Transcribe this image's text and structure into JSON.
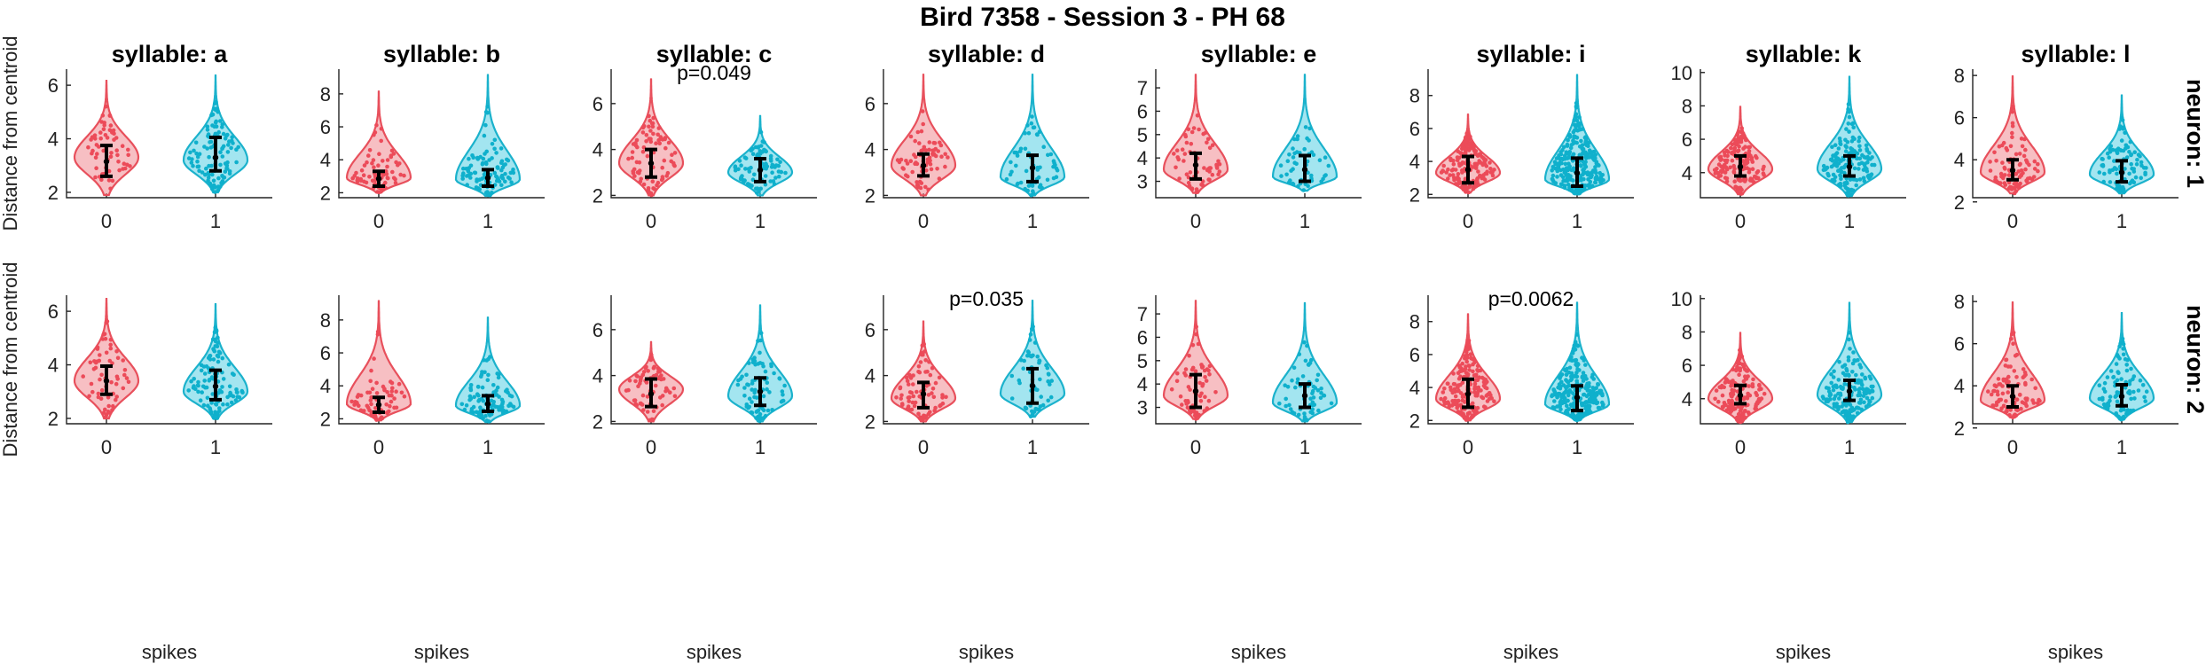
{
  "chart_data": {
    "type": "violin",
    "title": "Bird 7358 - Session 3 - PH 68",
    "xlabel": "spikes",
    "ylabel": "Distance from centroid",
    "x_categories": [
      "0",
      "1"
    ],
    "colors": {
      "spikes_0": "#e8505c",
      "spikes_1": "#1bb2cc"
    },
    "rows": [
      "neuron: 1",
      "neuron: 2"
    ],
    "columns": [
      "syllable: a",
      "syllable: b",
      "syllable: c",
      "syllable: d",
      "syllable: e",
      "syllable: i",
      "syllable: k",
      "syllable: l"
    ],
    "panels": [
      {
        "row": 0,
        "col": 0,
        "ylim": [
          1.8,
          6.6
        ],
        "yticks": [
          2,
          4,
          6
        ],
        "pvalue": "",
        "groups": [
          {
            "x": "0",
            "min": 1.9,
            "max": 6.2,
            "mode": 3.3,
            "mean": 3.15,
            "err_low": 2.6,
            "err_high": 3.75,
            "n": 60
          },
          {
            "x": "1",
            "min": 2.0,
            "max": 6.4,
            "mode": 3.2,
            "mean": 3.3,
            "err_low": 2.8,
            "err_high": 4.05,
            "n": 110
          }
        ]
      },
      {
        "row": 0,
        "col": 1,
        "ylim": [
          1.7,
          9.5
        ],
        "yticks": [
          2,
          4,
          6,
          8
        ],
        "pvalue": "",
        "groups": [
          {
            "x": "0",
            "min": 2.0,
            "max": 8.2,
            "mode": 2.9,
            "mean": 2.85,
            "err_low": 2.4,
            "err_high": 3.3,
            "n": 70
          },
          {
            "x": "1",
            "min": 1.8,
            "max": 9.2,
            "mode": 2.8,
            "mean": 2.9,
            "err_low": 2.4,
            "err_high": 3.4,
            "n": 100
          }
        ]
      },
      {
        "row": 0,
        "col": 2,
        "ylim": [
          1.9,
          7.5
        ],
        "yticks": [
          2,
          4,
          6
        ],
        "pvalue": "p=0.049",
        "groups": [
          {
            "x": "0",
            "min": 2.0,
            "max": 7.1,
            "mode": 3.4,
            "mean": 3.4,
            "err_low": 2.8,
            "err_high": 4.0,
            "n": 80
          },
          {
            "x": "1",
            "min": 2.0,
            "max": 5.5,
            "mode": 3.0,
            "mean": 3.1,
            "err_low": 2.6,
            "err_high": 3.6,
            "n": 80
          }
        ]
      },
      {
        "row": 0,
        "col": 3,
        "ylim": [
          1.9,
          7.5
        ],
        "yticks": [
          2,
          4,
          6
        ],
        "pvalue": "",
        "groups": [
          {
            "x": "0",
            "min": 2.0,
            "max": 7.3,
            "mode": 3.3,
            "mean": 3.3,
            "err_low": 2.85,
            "err_high": 3.8,
            "n": 70
          },
          {
            "x": "1",
            "min": 2.0,
            "max": 7.3,
            "mode": 2.8,
            "mean": 3.2,
            "err_low": 2.6,
            "err_high": 3.75,
            "n": 60
          }
        ]
      },
      {
        "row": 0,
        "col": 4,
        "ylim": [
          2.3,
          7.8
        ],
        "yticks": [
          3,
          4,
          5,
          6,
          7
        ],
        "pvalue": "",
        "groups": [
          {
            "x": "0",
            "min": 2.5,
            "max": 7.6,
            "mode": 3.5,
            "mean": 3.7,
            "err_low": 3.1,
            "err_high": 4.2,
            "n": 60
          },
          {
            "x": "1",
            "min": 2.6,
            "max": 7.6,
            "mode": 3.2,
            "mean": 3.5,
            "err_low": 3.0,
            "err_high": 4.1,
            "n": 50
          }
        ]
      },
      {
        "row": 0,
        "col": 5,
        "ylim": [
          1.8,
          9.6
        ],
        "yticks": [
          2,
          4,
          6,
          8
        ],
        "pvalue": "",
        "groups": [
          {
            "x": "0",
            "min": 2.1,
            "max": 6.9,
            "mode": 3.3,
            "mean": 3.5,
            "err_low": 2.7,
            "err_high": 4.3,
            "n": 200
          },
          {
            "x": "1",
            "min": 2.0,
            "max": 9.3,
            "mode": 2.9,
            "mean": 3.3,
            "err_low": 2.5,
            "err_high": 4.2,
            "n": 260
          }
        ]
      },
      {
        "row": 0,
        "col": 6,
        "ylim": [
          2.5,
          10.2
        ],
        "yticks": [
          4,
          6,
          8,
          10
        ],
        "pvalue": "",
        "groups": [
          {
            "x": "0",
            "min": 2.7,
            "max": 8.0,
            "mode": 4.2,
            "mean": 4.35,
            "err_low": 3.8,
            "err_high": 5.0,
            "n": 150
          },
          {
            "x": "1",
            "min": 2.6,
            "max": 9.8,
            "mode": 4.2,
            "mean": 4.35,
            "err_low": 3.8,
            "err_high": 5.0,
            "n": 160
          }
        ]
      },
      {
        "row": 0,
        "col": 7,
        "ylim": [
          2.2,
          8.3
        ],
        "yticks": [
          2,
          4,
          6,
          8
        ],
        "pvalue": "",
        "groups": [
          {
            "x": "0",
            "min": 2.4,
            "max": 8.0,
            "mode": 3.4,
            "mean": 3.5,
            "err_low": 3.05,
            "err_high": 4.0,
            "n": 90
          },
          {
            "x": "1",
            "min": 2.4,
            "max": 7.1,
            "mode": 3.3,
            "mean": 3.4,
            "err_low": 2.95,
            "err_high": 3.95,
            "n": 90
          }
        ]
      },
      {
        "row": 1,
        "col": 0,
        "ylim": [
          1.8,
          6.6
        ],
        "yticks": [
          2,
          4,
          6
        ],
        "pvalue": "",
        "groups": [
          {
            "x": "0",
            "min": 2.0,
            "max": 6.5,
            "mode": 3.4,
            "mean": 3.4,
            "err_low": 2.9,
            "err_high": 3.95,
            "n": 60
          },
          {
            "x": "1",
            "min": 2.0,
            "max": 6.3,
            "mode": 3.0,
            "mean": 3.2,
            "err_low": 2.7,
            "err_high": 3.8,
            "n": 110
          }
        ]
      },
      {
        "row": 1,
        "col": 1,
        "ylim": [
          1.7,
          9.5
        ],
        "yticks": [
          2,
          4,
          6,
          8
        ],
        "pvalue": "",
        "groups": [
          {
            "x": "0",
            "min": 1.9,
            "max": 9.2,
            "mode": 2.9,
            "mean": 2.85,
            "err_low": 2.4,
            "err_high": 3.3,
            "n": 70
          },
          {
            "x": "1",
            "min": 1.8,
            "max": 8.2,
            "mode": 2.8,
            "mean": 2.9,
            "err_low": 2.45,
            "err_high": 3.4,
            "n": 100
          }
        ]
      },
      {
        "row": 1,
        "col": 2,
        "ylim": [
          1.9,
          7.5
        ],
        "yticks": [
          2,
          4,
          6
        ],
        "pvalue": "",
        "groups": [
          {
            "x": "0",
            "min": 2.0,
            "max": 5.5,
            "mode": 3.4,
            "mean": 3.2,
            "err_low": 2.65,
            "err_high": 3.85,
            "n": 70
          },
          {
            "x": "1",
            "min": 2.0,
            "max": 7.1,
            "mode": 3.1,
            "mean": 3.3,
            "err_low": 2.7,
            "err_high": 3.9,
            "n": 80
          }
        ]
      },
      {
        "row": 1,
        "col": 3,
        "ylim": [
          1.9,
          7.5
        ],
        "yticks": [
          2,
          4,
          6
        ],
        "pvalue": "p=0.035",
        "groups": [
          {
            "x": "0",
            "min": 2.0,
            "max": 6.4,
            "mode": 3.0,
            "mean": 3.2,
            "err_low": 2.6,
            "err_high": 3.7,
            "n": 80
          },
          {
            "x": "1",
            "min": 2.2,
            "max": 7.3,
            "mode": 3.2,
            "mean": 3.55,
            "err_low": 2.8,
            "err_high": 4.3,
            "n": 60
          }
        ]
      },
      {
        "row": 1,
        "col": 4,
        "ylim": [
          2.3,
          7.8
        ],
        "yticks": [
          3,
          4,
          5,
          6,
          7
        ],
        "pvalue": "",
        "groups": [
          {
            "x": "0",
            "min": 2.5,
            "max": 7.6,
            "mode": 3.5,
            "mean": 3.7,
            "err_low": 3.0,
            "err_high": 4.4,
            "n": 60
          },
          {
            "x": "1",
            "min": 2.4,
            "max": 7.5,
            "mode": 3.2,
            "mean": 3.5,
            "err_low": 3.0,
            "err_high": 4.0,
            "n": 60
          }
        ]
      },
      {
        "row": 1,
        "col": 5,
        "ylim": [
          1.8,
          9.6
        ],
        "yticks": [
          2,
          4,
          6,
          8
        ],
        "pvalue": "p=0.0062",
        "groups": [
          {
            "x": "0",
            "min": 2.0,
            "max": 8.5,
            "mode": 3.3,
            "mean": 3.6,
            "err_low": 2.8,
            "err_high": 4.5,
            "n": 200
          },
          {
            "x": "1",
            "min": 2.0,
            "max": 9.2,
            "mode": 3.0,
            "mean": 3.4,
            "err_low": 2.6,
            "err_high": 4.1,
            "n": 260
          }
        ]
      },
      {
        "row": 1,
        "col": 6,
        "ylim": [
          2.5,
          10.2
        ],
        "yticks": [
          4,
          6,
          8,
          10
        ],
        "pvalue": "",
        "groups": [
          {
            "x": "0",
            "min": 2.6,
            "max": 8.0,
            "mode": 4.0,
            "mean": 4.2,
            "err_low": 3.7,
            "err_high": 4.8,
            "n": 150
          },
          {
            "x": "1",
            "min": 2.6,
            "max": 9.8,
            "mode": 4.2,
            "mean": 4.45,
            "err_low": 3.9,
            "err_high": 5.1,
            "n": 160
          }
        ]
      },
      {
        "row": 1,
        "col": 7,
        "ylim": [
          2.2,
          8.3
        ],
        "yticks": [
          2,
          4,
          6,
          8
        ],
        "pvalue": "",
        "groups": [
          {
            "x": "0",
            "min": 2.5,
            "max": 8.0,
            "mode": 3.3,
            "mean": 3.5,
            "err_low": 3.0,
            "err_high": 4.0,
            "n": 90
          },
          {
            "x": "1",
            "min": 2.4,
            "max": 7.5,
            "mode": 3.4,
            "mean": 3.5,
            "err_low": 3.05,
            "err_high": 4.05,
            "n": 90
          }
        ]
      }
    ]
  }
}
